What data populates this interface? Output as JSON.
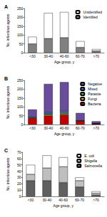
{
  "chart_data": [
    {
      "type": "bar",
      "title": "A",
      "stacked": true,
      "legend": "upper right",
      "xlabel": "Age group, y",
      "ylabel": "No. infectious agents",
      "categories": [
        "<30",
        "30-40",
        "40-60",
        "60-70",
        ">70"
      ],
      "series": [
        {
          "name": "Identified",
          "color": "#808080",
          "values": [
            50,
            80,
            85,
            30,
            10
          ]
        },
        {
          "name": "Unidentified",
          "color": "#ffffff",
          "values": [
            40,
            145,
            145,
            35,
            10
          ]
        }
      ],
      "ylim": [
        0,
        250
      ],
      "yticks": [
        0,
        50,
        100,
        150,
        200,
        250
      ]
    },
    {
      "type": "bar",
      "title": "B",
      "stacked": true,
      "legend": "upper right",
      "xlabel": "Age group, y",
      "ylabel": "No. infectious agents",
      "categories": [
        "<30",
        "30-40",
        "40-60",
        "60-70",
        ">70"
      ],
      "series": [
        {
          "name": "Bacteria",
          "color": "#c00000",
          "values": [
            35,
            50,
            55,
            20,
            5
          ]
        },
        {
          "name": "Fungi",
          "color": "#e6b422",
          "values": [
            2,
            5,
            5,
            1,
            0
          ]
        },
        {
          "name": "Parasite",
          "color": "#4caf50",
          "values": [
            3,
            5,
            6,
            1,
            0
          ]
        },
        {
          "name": "Mixed",
          "color": "#3f6fb5",
          "values": [
            5,
            10,
            9,
            3,
            1
          ]
        },
        {
          "name": "Negative",
          "color": "#6a4c9c",
          "values": [
            40,
            160,
            165,
            40,
            12
          ]
        }
      ],
      "ylim": [
        0,
        250
      ],
      "yticks": [
        0,
        50,
        100,
        150,
        200,
        250
      ]
    },
    {
      "type": "bar",
      "title": "C",
      "stacked": true,
      "legend": "upper right",
      "xlabel": "Age group, y",
      "ylabel": "No. infectious agents",
      "categories": [
        "<30",
        "30-40",
        "40-60",
        "60-70",
        ">70"
      ],
      "series": [
        {
          "name": "Salmonella",
          "color": "#606060",
          "values": [
            25,
            25,
            22,
            15,
            2
          ]
        },
        {
          "name": "Shigella",
          "color": "#bfbfbf",
          "values": [
            10,
            20,
            25,
            10,
            3
          ]
        },
        {
          "name": "E. coli",
          "color": "#ffffff",
          "values": [
            15,
            20,
            15,
            5,
            3
          ]
        }
      ],
      "ylim": [
        0,
        70
      ],
      "yticks": [
        0,
        10,
        20,
        30,
        40,
        50,
        60,
        70
      ]
    }
  ]
}
